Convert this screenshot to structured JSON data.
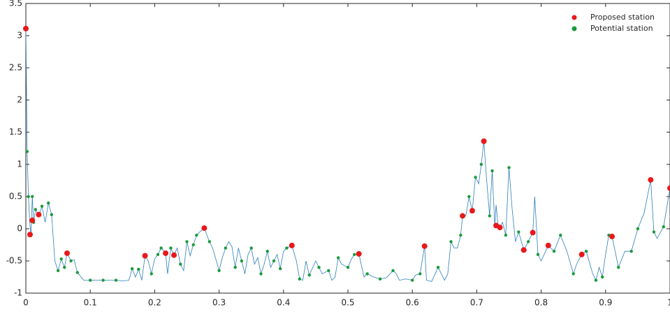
{
  "chart_data": {
    "type": "scatter",
    "xlim": [
      0,
      1
    ],
    "ylim": [
      -1,
      3.5
    ],
    "xticks": [
      0,
      0.1,
      0.2,
      0.3,
      0.4,
      0.5,
      0.6,
      0.7,
      0.8,
      0.9,
      1
    ],
    "yticks": [
      -1,
      -0.5,
      0,
      0.5,
      1,
      1.5,
      2,
      2.5,
      3,
      3.5
    ],
    "legend": "upper right",
    "line": {
      "color": "#2c7fb8",
      "x": [
        0,
        0.002,
        0.004,
        0.006,
        0.008,
        0.01,
        0.012,
        0.015,
        0.02,
        0.025,
        0.03,
        0.035,
        0.04,
        0.045,
        0.05,
        0.055,
        0.06,
        0.064,
        0.07,
        0.075,
        0.08,
        0.09,
        0.1,
        0.12,
        0.14,
        0.15,
        0.16,
        0.165,
        0.17,
        0.175,
        0.18,
        0.185,
        0.19,
        0.195,
        0.2,
        0.205,
        0.21,
        0.217,
        0.22,
        0.225,
        0.23,
        0.235,
        0.24,
        0.245,
        0.25,
        0.255,
        0.26,
        0.265,
        0.27,
        0.277,
        0.285,
        0.29,
        0.3,
        0.305,
        0.31,
        0.315,
        0.32,
        0.325,
        0.33,
        0.335,
        0.34,
        0.345,
        0.35,
        0.355,
        0.36,
        0.365,
        0.37,
        0.375,
        0.38,
        0.385,
        0.39,
        0.395,
        0.4,
        0.405,
        0.413,
        0.42,
        0.425,
        0.43,
        0.435,
        0.44,
        0.45,
        0.455,
        0.46,
        0.47,
        0.475,
        0.48,
        0.485,
        0.49,
        0.5,
        0.505,
        0.51,
        0.517,
        0.525,
        0.53,
        0.54,
        0.55,
        0.56,
        0.57,
        0.575,
        0.58,
        0.59,
        0.6,
        0.605,
        0.612,
        0.619,
        0.622,
        0.63,
        0.64,
        0.65,
        0.655,
        0.66,
        0.665,
        0.67,
        0.675,
        0.678,
        0.683,
        0.688,
        0.693,
        0.698,
        0.703,
        0.707,
        0.711,
        0.715,
        0.72,
        0.724,
        0.728,
        0.73,
        0.733,
        0.736,
        0.74,
        0.745,
        0.75,
        0.755,
        0.76,
        0.765,
        0.773,
        0.78,
        0.787,
        0.79,
        0.795,
        0.8,
        0.811,
        0.82,
        0.83,
        0.84,
        0.85,
        0.855,
        0.863,
        0.87,
        0.88,
        0.885,
        0.89,
        0.895,
        0.9,
        0.905,
        0.91,
        0.92,
        0.93,
        0.94,
        0.95,
        0.96,
        0.97,
        0.975,
        0.98,
        0.99,
        1
      ],
      "y": [
        3.11,
        1.2,
        0.5,
        0.1,
        -0.1,
        0.5,
        0.1,
        0.3,
        0.2,
        0.35,
        0.1,
        0.4,
        0.22,
        -0.5,
        -0.65,
        -0.47,
        -0.6,
        -0.38,
        -0.5,
        -0.48,
        -0.68,
        -0.8,
        -0.8,
        -0.8,
        -0.8,
        -0.81,
        -0.8,
        -0.62,
        -0.75,
        -0.63,
        -0.8,
        -0.42,
        -0.5,
        -0.7,
        -0.47,
        -0.4,
        -0.3,
        -0.38,
        -0.7,
        -0.3,
        -0.41,
        -0.3,
        -0.55,
        -0.65,
        -0.2,
        -0.42,
        -0.25,
        -0.1,
        -0.05,
        0.01,
        -0.2,
        -0.3,
        -0.65,
        -0.45,
        -0.3,
        -0.2,
        -0.28,
        -0.6,
        -0.3,
        -0.5,
        -0.7,
        -0.4,
        -0.3,
        -0.55,
        -0.45,
        -0.7,
        -0.55,
        -0.35,
        -0.6,
        -0.5,
        -0.4,
        -0.62,
        -0.35,
        -0.3,
        -0.26,
        -0.5,
        -0.78,
        -0.8,
        -0.5,
        -0.72,
        -0.5,
        -0.6,
        -0.7,
        -0.65,
        -0.8,
        -0.75,
        -0.45,
        -0.55,
        -0.6,
        -0.48,
        -0.4,
        -0.39,
        -0.75,
        -0.7,
        -0.75,
        -0.78,
        -0.76,
        -0.65,
        -0.7,
        -0.8,
        -0.78,
        -0.8,
        -0.72,
        -0.7,
        -0.27,
        -0.8,
        -0.82,
        -0.6,
        -0.8,
        -0.7,
        -0.2,
        -0.3,
        -0.3,
        -0.1,
        0.2,
        0.2,
        0.5,
        0.28,
        0.8,
        0.7,
        1.0,
        1.36,
        0.8,
        0.2,
        0.9,
        0.05,
        0.37,
        0.05,
        0.02,
        0.1,
        -0.1,
        0.95,
        0.3,
        -0.2,
        -0.05,
        -0.33,
        -0.2,
        -0.06,
        0.5,
        -0.4,
        -0.5,
        -0.26,
        -0.35,
        -0.1,
        -0.35,
        -0.7,
        -0.55,
        -0.4,
        -0.35,
        -0.7,
        -0.8,
        -0.6,
        -0.75,
        -0.4,
        -0.1,
        -0.12,
        -0.6,
        -0.35,
        -0.35,
        0.0,
        0.25,
        0.76,
        -0.05,
        -0.15,
        0.03,
        0.63
      ]
    },
    "series": [
      {
        "name": "Proposed station",
        "color": "#e8191c",
        "x": [
          0,
          0.0065,
          0.01,
          0.02,
          0.064,
          0.185,
          0.217,
          0.23,
          0.277,
          0.413,
          0.517,
          0.619,
          0.678,
          0.693,
          0.711,
          0.73,
          0.736,
          0.773,
          0.787,
          0.811,
          0.863,
          0.91,
          0.97,
          1
        ],
        "y": [
          3.11,
          -0.09,
          0.13,
          0.22,
          -0.38,
          -0.42,
          -0.38,
          -0.41,
          0.01,
          -0.26,
          -0.39,
          -0.27,
          0.2,
          0.28,
          1.36,
          0.05,
          0.02,
          -0.33,
          -0.06,
          -0.26,
          -0.4,
          -0.12,
          0.76,
          0.63
        ]
      },
      {
        "name": "Potential station",
        "color": "#1a9a3a",
        "x": [
          0.002,
          0.004,
          0.008,
          0.01,
          0.012,
          0.015,
          0.025,
          0.035,
          0.04,
          0.05,
          0.055,
          0.06,
          0.07,
          0.08,
          0.1,
          0.12,
          0.14,
          0.165,
          0.175,
          0.195,
          0.205,
          0.21,
          0.225,
          0.24,
          0.25,
          0.26,
          0.265,
          0.285,
          0.3,
          0.31,
          0.325,
          0.335,
          0.35,
          0.365,
          0.375,
          0.385,
          0.395,
          0.405,
          0.425,
          0.44,
          0.455,
          0.47,
          0.485,
          0.5,
          0.51,
          0.53,
          0.55,
          0.57,
          0.6,
          0.612,
          0.64,
          0.66,
          0.675,
          0.688,
          0.698,
          0.707,
          0.72,
          0.724,
          0.733,
          0.745,
          0.75,
          0.765,
          0.78,
          0.795,
          0.82,
          0.83,
          0.85,
          0.87,
          0.885,
          0.895,
          0.905,
          0.92,
          0.94,
          0.95,
          0.975,
          0.99
        ],
        "y": [
          1.2,
          0.5,
          -0.1,
          0.5,
          0.1,
          0.3,
          0.35,
          0.4,
          0.22,
          -0.65,
          -0.47,
          -0.6,
          -0.5,
          -0.68,
          -0.8,
          -0.8,
          -0.8,
          -0.62,
          -0.63,
          -0.7,
          -0.4,
          -0.3,
          -0.3,
          -0.55,
          -0.2,
          -0.25,
          -0.1,
          -0.2,
          -0.65,
          -0.3,
          -0.6,
          -0.5,
          -0.3,
          -0.7,
          -0.35,
          -0.5,
          -0.62,
          -0.3,
          -0.78,
          -0.72,
          -0.6,
          -0.65,
          -0.45,
          -0.6,
          -0.4,
          -0.7,
          -0.78,
          -0.65,
          -0.8,
          -0.7,
          -0.6,
          -0.2,
          -0.1,
          0.5,
          0.8,
          1.0,
          0.2,
          0.9,
          0.05,
          -0.1,
          0.95,
          -0.05,
          -0.2,
          -0.4,
          -0.35,
          -0.1,
          -0.7,
          -0.35,
          -0.8,
          -0.75,
          -0.1,
          -0.6,
          -0.35,
          0.0,
          -0.05,
          0.03
        ]
      }
    ]
  }
}
